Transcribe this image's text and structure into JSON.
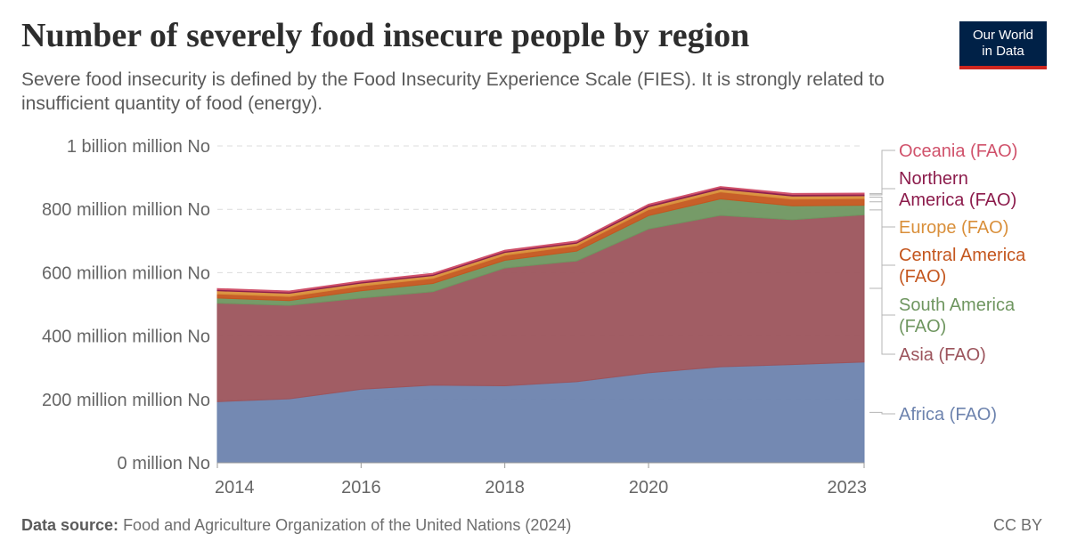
{
  "header": {
    "title": "Number of severely food insecure people by region",
    "subtitle": "Severe food insecurity is defined by the Food Insecurity Experience Scale (FIES). It is strongly related to insufficient quantity of food (energy).",
    "logo_line1": "Our World",
    "logo_line2": "in Data"
  },
  "footer": {
    "source_label": "Data source:",
    "source_text": "Food and Agriculture Organization of the United Nations (2024)",
    "license": "CC BY"
  },
  "colors": {
    "Africa (FAO)": "#6d83ae",
    "Asia (FAO)": "#9c545c",
    "South America (FAO)": "#6f9660",
    "Central America (FAO)": "#c4561e",
    "Europe (FAO)": "#d98f3a",
    "Northern America (FAO)": "#8c1c4c",
    "Oceania (FAO)": "#d0526b"
  },
  "chart_data": {
    "type": "area",
    "stacked": true,
    "x": [
      2014,
      2015,
      2016,
      2017,
      2018,
      2019,
      2020,
      2021,
      2022,
      2023
    ],
    "x_tick_labels": [
      "2014",
      "2016",
      "2018",
      "2020",
      "2023"
    ],
    "y_tick_labels": [
      "0 million No",
      "200 million million No",
      "400 million million No",
      "600 million million No",
      "800 million million No",
      "1 billion million No"
    ],
    "ylim": [
      0,
      1000
    ],
    "grid": "horizontal dashed",
    "legend": "right",
    "series": [
      {
        "name": "Africa (FAO)",
        "values": [
          193,
          202,
          232,
          245,
          243,
          256,
          284,
          303,
          310,
          318
        ]
      },
      {
        "name": "Asia (FAO)",
        "values": [
          311,
          295,
          288,
          295,
          372,
          381,
          454,
          478,
          457,
          465
        ]
      },
      {
        "name": "South America (FAO)",
        "values": [
          16,
          15,
          23,
          26,
          24,
          31,
          42,
          52,
          44,
          30
        ]
      },
      {
        "name": "Central America (FAO)",
        "values": [
          13,
          13,
          15,
          16,
          16,
          17,
          19,
          22,
          21,
          21
        ]
      },
      {
        "name": "Europe (FAO)",
        "values": [
          10,
          10,
          9,
          9,
          9,
          8,
          9,
          9,
          10,
          9
        ]
      },
      {
        "name": "Northern America (FAO)",
        "values": [
          4,
          4,
          4,
          4,
          4,
          4,
          5,
          5,
          5,
          5
        ]
      },
      {
        "name": "Oceania (FAO)",
        "values": [
          3,
          3,
          3,
          3,
          3,
          3,
          3,
          3,
          3,
          3
        ]
      }
    ],
    "legend_labels": [
      {
        "series": "Oceania (FAO)",
        "lines": [
          "Oceania (FAO)"
        ]
      },
      {
        "series": "Northern America (FAO)",
        "lines": [
          "Northern",
          "America (FAO)"
        ]
      },
      {
        "series": "Europe (FAO)",
        "lines": [
          "Europe (FAO)"
        ]
      },
      {
        "series": "Central America (FAO)",
        "lines": [
          "Central America",
          "(FAO)"
        ]
      },
      {
        "series": "South America (FAO)",
        "lines": [
          "South America",
          "(FAO)"
        ]
      },
      {
        "series": "Asia (FAO)",
        "lines": [
          "Asia (FAO)"
        ]
      },
      {
        "series": "Africa (FAO)",
        "lines": [
          "Africa (FAO)"
        ]
      }
    ]
  }
}
